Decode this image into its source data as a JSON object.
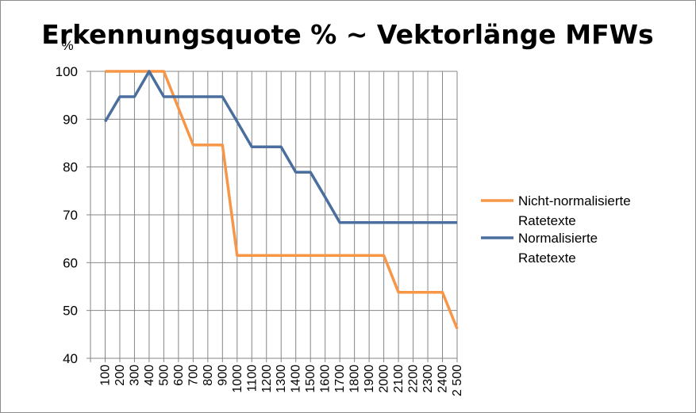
{
  "chart_data": {
    "type": "line",
    "title": "Erkennungsquote % ~ Vektorlänge MFWs",
    "ylabel": "%",
    "xlabel": "",
    "ylim": [
      40,
      100
    ],
    "yticks": [
      40,
      50,
      60,
      70,
      80,
      90,
      100
    ],
    "grid": true,
    "legend_position": "right",
    "categories": [
      "100",
      "200",
      "300",
      "400",
      "500",
      "600",
      "700",
      "800",
      "900",
      "1000",
      "1100",
      "1200",
      "1300",
      "1400",
      "1500",
      "1600",
      "1700",
      "1800",
      "1900",
      "2000",
      "2100",
      "2200",
      "2300",
      "2400",
      "2 500"
    ],
    "series": [
      {
        "name": "Nicht-normalisierte Ratetexte",
        "color": "#f79646",
        "values": [
          100,
          100,
          100,
          100,
          100,
          92.3,
          84.6,
          84.6,
          84.6,
          61.5,
          61.5,
          61.5,
          61.5,
          61.5,
          61.5,
          61.5,
          61.5,
          61.5,
          61.5,
          61.5,
          53.8,
          53.8,
          53.8,
          53.8,
          46.2
        ]
      },
      {
        "name": "Normalisierte Ratetexte",
        "color": "#4a6f9e",
        "values": [
          89.5,
          94.7,
          94.7,
          100,
          94.7,
          94.7,
          94.7,
          94.7,
          94.7,
          89.5,
          84.2,
          84.2,
          84.2,
          78.9,
          78.9,
          73.7,
          68.4,
          68.4,
          68.4,
          68.4,
          68.4,
          68.4,
          68.4,
          68.4,
          68.4
        ]
      }
    ]
  }
}
